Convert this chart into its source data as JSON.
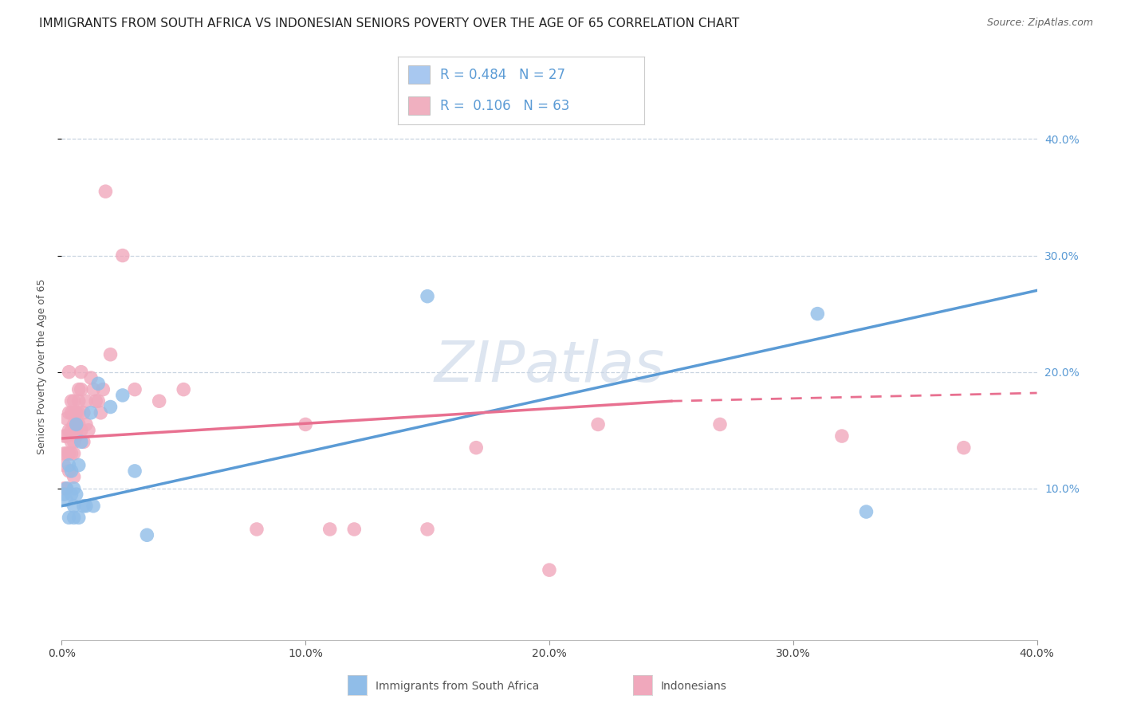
{
  "title": "IMMIGRANTS FROM SOUTH AFRICA VS INDONESIAN SENIORS POVERTY OVER THE AGE OF 65 CORRELATION CHART",
  "source": "Source: ZipAtlas.com",
  "ylabel": "Seniors Poverty Over the Age of 65",
  "watermark": "ZIPatlas",
  "xlim": [
    0.0,
    0.4
  ],
  "ylim": [
    -0.03,
    0.44
  ],
  "yticks": [
    0.1,
    0.2,
    0.3,
    0.4
  ],
  "xticks": [
    0.0,
    0.1,
    0.2,
    0.3,
    0.4
  ],
  "xtick_labels": [
    "0.0%",
    "10.0%",
    "20.0%",
    "30.0%",
    "40.0%"
  ],
  "ytick_labels": [
    "10.0%",
    "20.0%",
    "30.0%",
    "40.0%"
  ],
  "legend_items": [
    {
      "label": "R = 0.484   N = 27",
      "facecolor": "#a8c8f0"
    },
    {
      "label": "R =  0.106   N = 63",
      "facecolor": "#f0b0c0"
    }
  ],
  "blue_color": "#5b9bd5",
  "pink_color": "#e87090",
  "dot_blue_color": "#90bde8",
  "dot_pink_color": "#f0a8bc",
  "blue_scatter_x": [
    0.001,
    0.002,
    0.002,
    0.003,
    0.003,
    0.004,
    0.004,
    0.005,
    0.005,
    0.005,
    0.006,
    0.006,
    0.007,
    0.007,
    0.008,
    0.009,
    0.01,
    0.012,
    0.013,
    0.015,
    0.02,
    0.025,
    0.03,
    0.035,
    0.15,
    0.31,
    0.33
  ],
  "blue_scatter_y": [
    0.095,
    0.09,
    0.1,
    0.12,
    0.075,
    0.115,
    0.095,
    0.085,
    0.1,
    0.075,
    0.155,
    0.095,
    0.12,
    0.075,
    0.14,
    0.085,
    0.085,
    0.165,
    0.085,
    0.19,
    0.17,
    0.18,
    0.115,
    0.06,
    0.265,
    0.25,
    0.08
  ],
  "pink_scatter_x": [
    0.001,
    0.001,
    0.001,
    0.001,
    0.002,
    0.002,
    0.002,
    0.002,
    0.003,
    0.003,
    0.003,
    0.003,
    0.003,
    0.004,
    0.004,
    0.004,
    0.004,
    0.004,
    0.005,
    0.005,
    0.005,
    0.005,
    0.005,
    0.005,
    0.006,
    0.006,
    0.006,
    0.006,
    0.007,
    0.007,
    0.007,
    0.007,
    0.008,
    0.008,
    0.008,
    0.009,
    0.009,
    0.01,
    0.01,
    0.011,
    0.012,
    0.013,
    0.014,
    0.015,
    0.016,
    0.017,
    0.018,
    0.02,
    0.025,
    0.03,
    0.04,
    0.05,
    0.08,
    0.1,
    0.11,
    0.12,
    0.15,
    0.17,
    0.2,
    0.22,
    0.27,
    0.32,
    0.37
  ],
  "pink_scatter_y": [
    0.145,
    0.13,
    0.12,
    0.1,
    0.16,
    0.145,
    0.13,
    0.1,
    0.2,
    0.165,
    0.15,
    0.13,
    0.115,
    0.175,
    0.165,
    0.15,
    0.14,
    0.13,
    0.175,
    0.165,
    0.155,
    0.14,
    0.13,
    0.11,
    0.165,
    0.155,
    0.15,
    0.145,
    0.185,
    0.175,
    0.165,
    0.155,
    0.2,
    0.185,
    0.15,
    0.165,
    0.14,
    0.175,
    0.155,
    0.15,
    0.195,
    0.185,
    0.175,
    0.175,
    0.165,
    0.185,
    0.355,
    0.215,
    0.3,
    0.185,
    0.175,
    0.185,
    0.065,
    0.155,
    0.065,
    0.065,
    0.065,
    0.135,
    0.03,
    0.155,
    0.155,
    0.145,
    0.135
  ],
  "blue_line_x_start": 0.0,
  "blue_line_x_end": 0.4,
  "blue_line_y_start": 0.085,
  "blue_line_y_end": 0.27,
  "pink_line_x_solid_start": 0.0,
  "pink_line_x_solid_end": 0.25,
  "pink_line_y_solid_start": 0.143,
  "pink_line_y_solid_end": 0.175,
  "pink_line_x_dashed_start": 0.25,
  "pink_line_x_dashed_end": 0.4,
  "pink_line_y_dashed_start": 0.175,
  "pink_line_y_dashed_end": 0.182,
  "grid_color": "#c8d4e0",
  "background_color": "#ffffff",
  "title_fontsize": 11,
  "source_fontsize": 9,
  "axis_label_fontsize": 9,
  "tick_fontsize": 10,
  "legend_fontsize": 12,
  "watermark_color": "#ccd8e8",
  "watermark_fontsize": 52
}
